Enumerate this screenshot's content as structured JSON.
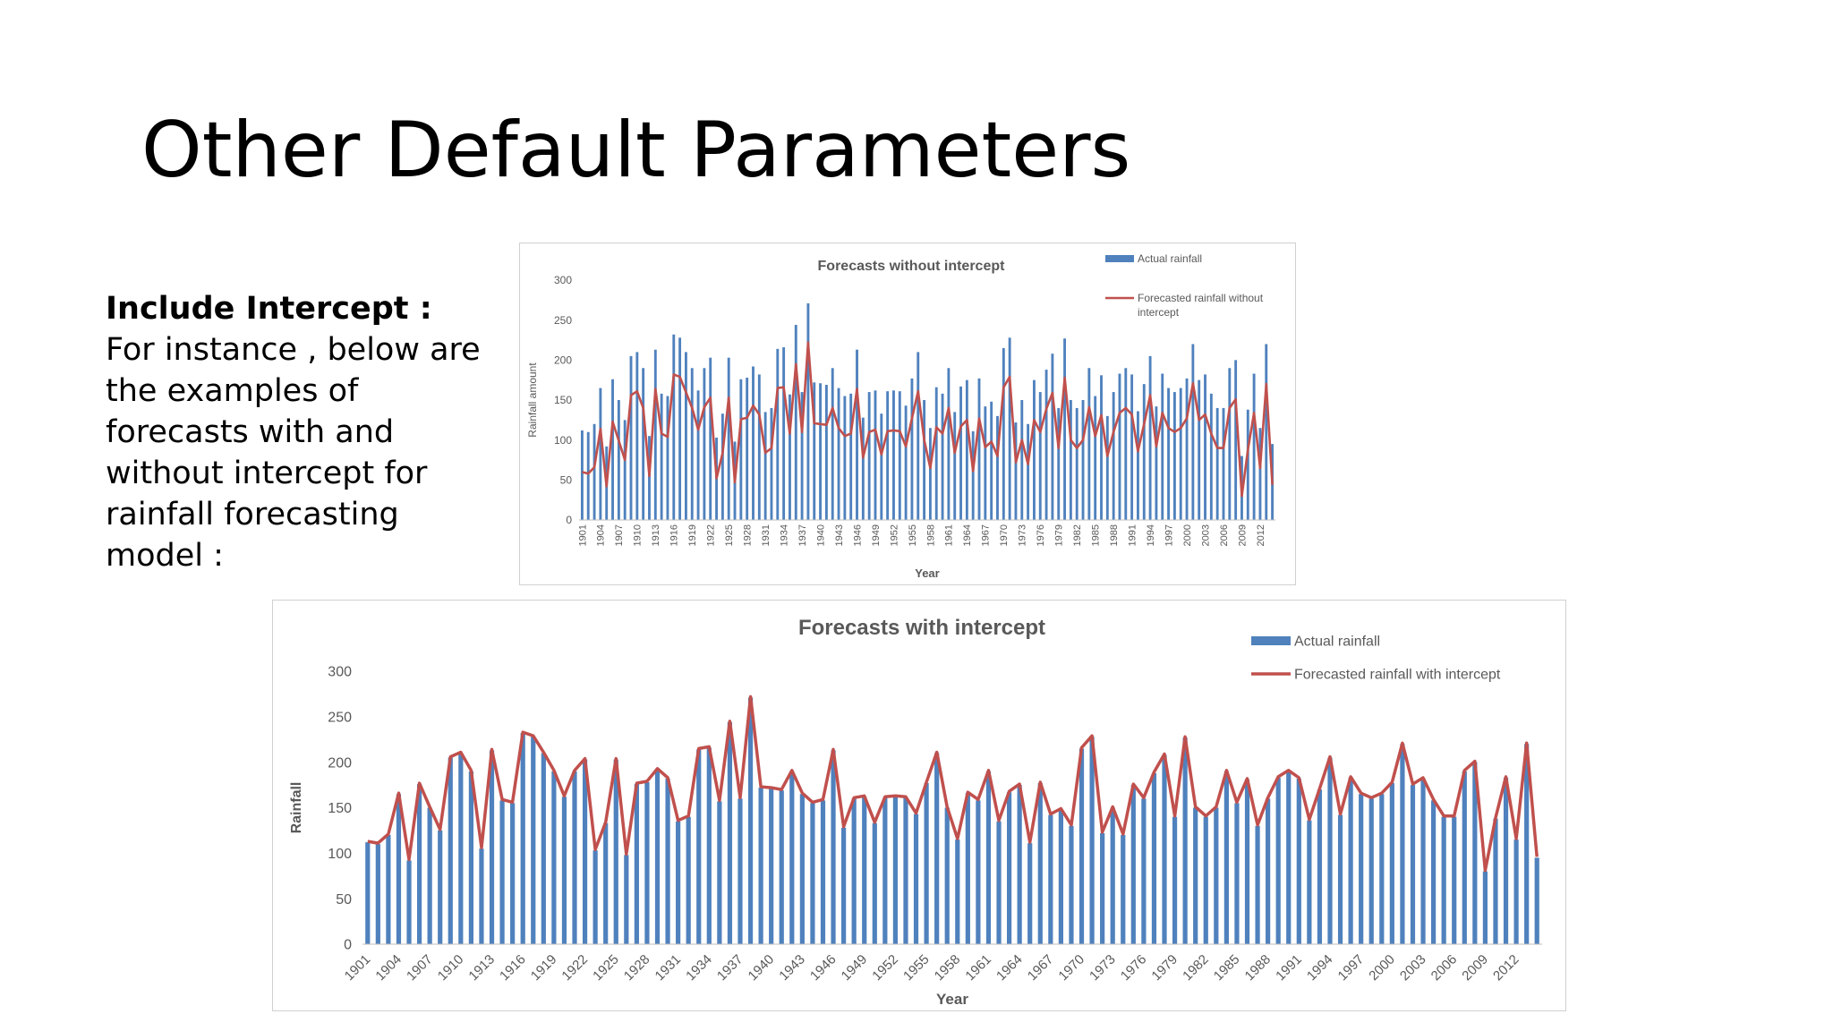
{
  "slide": {
    "title": "Other Default Parameters",
    "heading": "Include Intercept :",
    "paragraph": "For instance , below are the examples of forecasts with and without intercept for rainfall forecasting model :"
  },
  "chart_data": [
    {
      "type": "bar",
      "title": "Forecasts without intercept",
      "xlabel": "Year",
      "ylabel": "Rainfall amount",
      "ylim": [
        0,
        300
      ],
      "yticks": [
        0,
        50,
        100,
        150,
        200,
        250,
        300
      ],
      "grid": false,
      "legend_position": "top-right",
      "colors": {
        "bar": "#4f81bd",
        "line": "#c0504d"
      },
      "x_start": 1901,
      "x_end": 2014,
      "tick_every": 3,
      "series": [
        {
          "name": "Actual rainfall",
          "kind": "bar",
          "values": [
            112,
            110,
            120,
            165,
            92,
            176,
            150,
            125,
            205,
            210,
            190,
            105,
            213,
            158,
            155,
            232,
            228,
            210,
            190,
            162,
            190,
            203,
            103,
            133,
            203,
            98,
            176,
            178,
            192,
            182,
            135,
            140,
            214,
            216,
            157,
            244,
            160,
            271,
            172,
            171,
            169,
            190,
            165,
            155,
            158,
            213,
            128,
            160,
            162,
            133,
            161,
            162,
            161,
            143,
            177,
            210,
            150,
            115,
            166,
            158,
            190,
            135,
            167,
            175,
            111,
            177,
            142,
            148,
            130,
            215,
            228,
            122,
            150,
            120,
            175,
            160,
            188,
            208,
            140,
            227,
            150,
            140,
            150,
            190,
            155,
            181,
            130,
            160,
            183,
            190,
            182,
            136,
            170,
            205,
            142,
            183,
            165,
            160,
            165,
            177,
            220,
            175,
            182,
            158,
            140,
            140,
            190,
            200,
            80,
            138,
            183,
            115,
            220,
            95
          ]
        },
        {
          "name": "Forecasted rainfall without intercept",
          "kind": "line",
          "values": [
            60,
            58,
            66,
            114,
            42,
            123,
            99,
            75,
            156,
            161,
            140,
            55,
            164,
            108,
            104,
            182,
            179,
            160,
            140,
            113,
            141,
            153,
            52,
            84,
            153,
            47,
            126,
            128,
            143,
            132,
            84,
            90,
            165,
            166,
            108,
            195,
            110,
            222,
            121,
            120,
            119,
            140,
            115,
            105,
            108,
            164,
            78,
            110,
            113,
            82,
            111,
            112,
            111,
            92,
            127,
            161,
            100,
            65,
            116,
            108,
            140,
            84,
            117,
            125,
            61,
            127,
            91,
            98,
            80,
            166,
            179,
            72,
            100,
            70,
            125,
            110,
            139,
            159,
            90,
            178,
            100,
            90,
            100,
            141,
            105,
            131,
            80,
            110,
            134,
            140,
            132,
            86,
            120,
            156,
            92,
            134,
            115,
            110,
            115,
            127,
            171,
            125,
            132,
            108,
            90,
            90,
            140,
            151,
            30,
            88,
            134,
            65,
            170,
            44
          ]
        }
      ]
    },
    {
      "type": "bar",
      "title": "Forecasts with intercept",
      "xlabel": "Year",
      "ylabel": "Rainfall",
      "ylim": [
        0,
        300
      ],
      "yticks": [
        0,
        50,
        100,
        150,
        200,
        250,
        300
      ],
      "grid": false,
      "legend_position": "top-right",
      "colors": {
        "bar": "#4f81bd",
        "line": "#c0504d"
      },
      "x_start": 1901,
      "x_end": 2014,
      "tick_every": 3,
      "series": [
        {
          "name": "Actual rainfall",
          "kind": "bar",
          "values": [
            112,
            110,
            120,
            165,
            92,
            176,
            150,
            125,
            205,
            210,
            190,
            105,
            213,
            158,
            155,
            232,
            228,
            210,
            190,
            162,
            190,
            203,
            103,
            133,
            203,
            98,
            176,
            178,
            192,
            182,
            135,
            140,
            214,
            216,
            157,
            244,
            160,
            271,
            172,
            171,
            169,
            190,
            165,
            155,
            158,
            213,
            128,
            160,
            162,
            133,
            161,
            162,
            161,
            143,
            177,
            210,
            150,
            115,
            166,
            158,
            190,
            135,
            167,
            175,
            111,
            177,
            142,
            148,
            130,
            215,
            228,
            122,
            150,
            120,
            175,
            160,
            188,
            208,
            140,
            227,
            150,
            140,
            150,
            190,
            155,
            181,
            130,
            160,
            183,
            190,
            182,
            136,
            170,
            205,
            142,
            183,
            165,
            160,
            165,
            177,
            220,
            175,
            182,
            158,
            140,
            140,
            190,
            200,
            80,
            138,
            183,
            115,
            220,
            95
          ]
        },
        {
          "name": "Forecasted rainfall with intercept",
          "kind": "line",
          "values": [
            113,
            111,
            121,
            166,
            93,
            177,
            151,
            126,
            206,
            211,
            191,
            106,
            214,
            159,
            156,
            233,
            229,
            211,
            191,
            163,
            191,
            204,
            104,
            134,
            204,
            99,
            177,
            179,
            193,
            183,
            136,
            141,
            215,
            217,
            158,
            245,
            161,
            272,
            173,
            172,
            170,
            191,
            166,
            156,
            159,
            214,
            129,
            161,
            163,
            134,
            162,
            163,
            162,
            144,
            178,
            211,
            151,
            116,
            167,
            159,
            191,
            136,
            168,
            176,
            112,
            178,
            143,
            149,
            131,
            216,
            229,
            123,
            151,
            121,
            176,
            161,
            189,
            209,
            141,
            228,
            151,
            141,
            151,
            191,
            156,
            182,
            131,
            161,
            184,
            191,
            183,
            137,
            171,
            206,
            143,
            184,
            166,
            161,
            166,
            178,
            221,
            176,
            183,
            159,
            141,
            141,
            191,
            201,
            81,
            139,
            184,
            116,
            221,
            96
          ]
        }
      ]
    }
  ]
}
